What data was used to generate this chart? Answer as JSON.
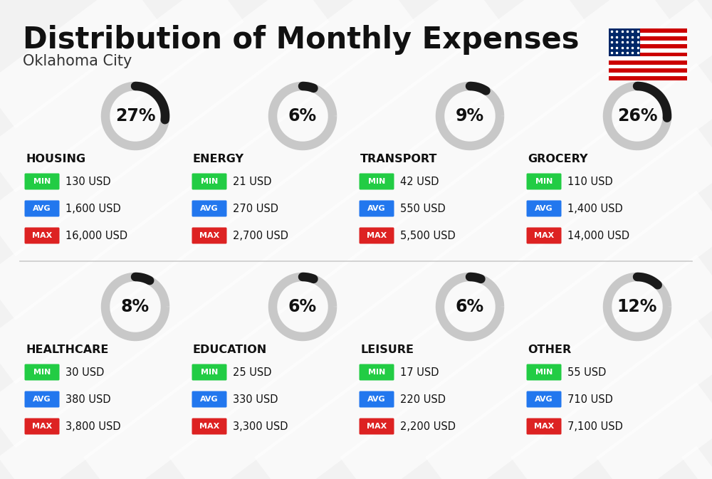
{
  "title": "Distribution of Monthly Expenses",
  "subtitle": "Oklahoma City",
  "background_color": "#f2f2f2",
  "categories": [
    {
      "name": "HOUSING",
      "percent": 27,
      "min_val": "130 USD",
      "avg_val": "1,600 USD",
      "max_val": "16,000 USD",
      "col": 0,
      "row": 0
    },
    {
      "name": "ENERGY",
      "percent": 6,
      "min_val": "21 USD",
      "avg_val": "270 USD",
      "max_val": "2,700 USD",
      "col": 1,
      "row": 0
    },
    {
      "name": "TRANSPORT",
      "percent": 9,
      "min_val": "42 USD",
      "avg_val": "550 USD",
      "max_val": "5,500 USD",
      "col": 2,
      "row": 0
    },
    {
      "name": "GROCERY",
      "percent": 26,
      "min_val": "110 USD",
      "avg_val": "1,400 USD",
      "max_val": "14,000 USD",
      "col": 3,
      "row": 0
    },
    {
      "name": "HEALTHCARE",
      "percent": 8,
      "min_val": "30 USD",
      "avg_val": "380 USD",
      "max_val": "3,800 USD",
      "col": 0,
      "row": 1
    },
    {
      "name": "EDUCATION",
      "percent": 6,
      "min_val": "25 USD",
      "avg_val": "330 USD",
      "max_val": "3,300 USD",
      "col": 1,
      "row": 1
    },
    {
      "name": "LEISURE",
      "percent": 6,
      "min_val": "17 USD",
      "avg_val": "220 USD",
      "max_val": "2,200 USD",
      "col": 2,
      "row": 1
    },
    {
      "name": "OTHER",
      "percent": 12,
      "min_val": "55 USD",
      "avg_val": "710 USD",
      "max_val": "7,100 USD",
      "col": 3,
      "row": 1
    }
  ],
  "min_color": "#22cc44",
  "avg_color": "#2277ee",
  "max_color": "#dd2222",
  "donut_dark": "#1a1a1a",
  "donut_light": "#c8c8c8",
  "title_fontsize": 30,
  "subtitle_fontsize": 15,
  "cat_fontsize": 11.5,
  "val_fontsize": 10.5,
  "lbl_fontsize": 8,
  "pct_fontsize": 17
}
